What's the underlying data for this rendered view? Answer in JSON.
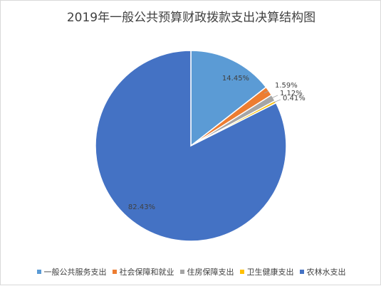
{
  "chart_data": {
    "type": "pie",
    "title": "2019年一般公共预算财政拨款支出决算结构图",
    "categories": [
      "一般公共服务支出",
      "社会保障和就业",
      "住房保障支出",
      "卫生健康支出",
      "农林水支出"
    ],
    "values": [
      14.45,
      1.59,
      1.12,
      0.41,
      82.43
    ],
    "data_labels": [
      "14.45%",
      "1.59%",
      "1.12%",
      "0.41%",
      "82.43%"
    ],
    "colors": [
      "#5b9bd5",
      "#ed7d31",
      "#a5a5a5",
      "#ffc000",
      "#4472c4"
    ],
    "legend_position": "bottom"
  }
}
